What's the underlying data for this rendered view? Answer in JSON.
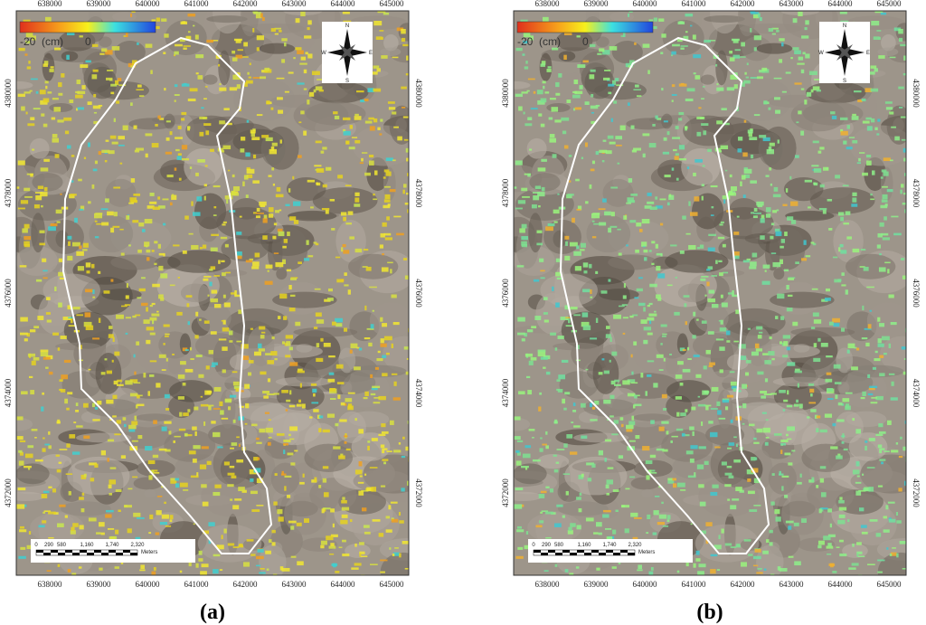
{
  "axes": {
    "x_ticks": [
      "638000",
      "639000",
      "640000",
      "641000",
      "642000",
      "643000",
      "644000",
      "645000"
    ],
    "y_ticks": [
      "4380000",
      "4378000",
      "4376000",
      "4374000",
      "4372000"
    ]
  },
  "legend": {
    "min_label": "-20",
    "unit": "(cm)",
    "zero_label": "0"
  },
  "compass": {
    "n": "N",
    "s": "S",
    "e": "E",
    "w": "W"
  },
  "scale_bar": {
    "labels": [
      "0",
      "290",
      "580",
      "1,160",
      "1,740",
      "2,320"
    ],
    "unit": "Meters"
  },
  "panels": [
    {
      "caption": "(a)"
    },
    {
      "caption": "(b)"
    }
  ]
}
